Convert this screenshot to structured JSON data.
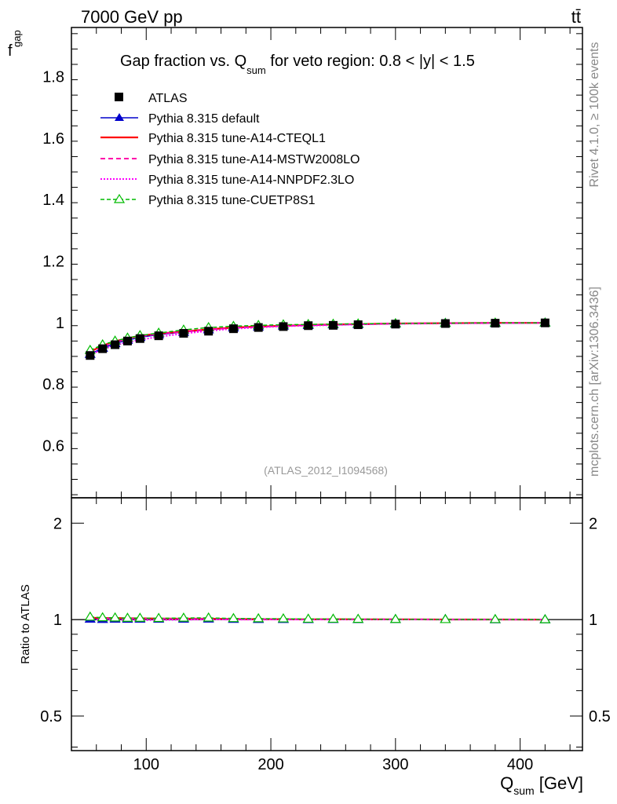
{
  "header": {
    "energy_label": "7000 GeV pp",
    "process_label": "tt̄"
  },
  "side_labels": {
    "rivet": "Rivet 4.1.0, ≥ 100k events",
    "mcplots": "mcplots.cern.ch [arXiv:1306.3436]"
  },
  "chart_data": {
    "type": "line",
    "title_parts": {
      "pre": "Gap fraction vs. Q",
      "sub": "sum",
      "post": " for veto region: 0.8 < |y| < 1.5"
    },
    "analysis_tag": "(ATLAS_2012_I1094568)",
    "ylabel": {
      "main": "f",
      "sub": "gap"
    },
    "xlabel": {
      "main": "Q",
      "sub": "sum",
      "unit": " [GeV]"
    },
    "ratio_ylabel": "Ratio to ATLAS",
    "xlim": [
      40,
      450
    ],
    "ylim": [
      0.43,
      1.96
    ],
    "ratio_ylim": [
      0.39,
      2.4
    ],
    "x_ticks": [
      100,
      200,
      300,
      400
    ],
    "y_ticks": [
      0.6,
      0.8,
      1,
      1.2,
      1.4,
      1.6,
      1.8
    ],
    "y_tick_labels": [
      "0.6",
      "0.8",
      "1",
      "1.2",
      "1.4",
      "1.6",
      "1.8"
    ],
    "ratio_ticks": [
      0.5,
      1,
      2
    ],
    "ratio_tick_labels": [
      "0.5",
      "1",
      "2"
    ],
    "x": [
      55,
      65,
      75,
      85,
      95,
      110,
      130,
      150,
      170,
      190,
      210,
      230,
      250,
      270,
      300,
      340,
      380,
      420
    ],
    "data": {
      "name": "ATLAS",
      "values": [
        0.893,
        0.915,
        0.928,
        0.94,
        0.948,
        0.957,
        0.965,
        0.972,
        0.98,
        0.984,
        0.987,
        0.99,
        0.991,
        0.993,
        0.995,
        0.997,
        0.998,
        0.999
      ]
    },
    "series": [
      {
        "name": "Pythia 8.315 default",
        "color": "#0000cc",
        "style": "solid-triangle",
        "values": [
          0.897,
          0.917,
          0.932,
          0.943,
          0.952,
          0.961,
          0.969,
          0.977,
          0.983,
          0.986,
          0.989,
          0.991,
          0.993,
          0.994,
          0.996,
          0.998,
          0.998,
          0.999
        ]
      },
      {
        "name": "Pythia 8.315 tune-A14-CTEQL1",
        "color": "#ff0000",
        "style": "solid",
        "values": [
          0.905,
          0.925,
          0.939,
          0.949,
          0.957,
          0.964,
          0.971,
          0.978,
          0.984,
          0.987,
          0.99,
          0.992,
          0.994,
          0.995,
          0.997,
          0.998,
          0.999,
          0.999
        ]
      },
      {
        "name": "Pythia 8.315 tune-A14-MSTW2008LO",
        "color": "#ff00aa",
        "style": "dashed",
        "values": [
          0.902,
          0.922,
          0.936,
          0.947,
          0.955,
          0.963,
          0.97,
          0.977,
          0.983,
          0.986,
          0.989,
          0.991,
          0.993,
          0.995,
          0.997,
          0.998,
          0.999,
          0.999
        ]
      },
      {
        "name": "Pythia 8.315 tune-A14-NNPDF2.3LO",
        "color": "#ff00ff",
        "style": "dotted",
        "values": [
          0.895,
          0.913,
          0.926,
          0.936,
          0.944,
          0.954,
          0.964,
          0.973,
          0.98,
          0.984,
          0.988,
          0.99,
          0.992,
          0.994,
          0.996,
          0.997,
          0.998,
          0.999
        ]
      },
      {
        "name": "Pythia 8.315 tune-CUETP8S1",
        "color": "#00bb00",
        "style": "dashed-open-triangle",
        "values": [
          0.91,
          0.928,
          0.94,
          0.95,
          0.958,
          0.966,
          0.976,
          0.984,
          0.988,
          0.991,
          0.993,
          0.994,
          0.995,
          0.996,
          0.997,
          0.998,
          0.999,
          0.999
        ]
      }
    ]
  }
}
